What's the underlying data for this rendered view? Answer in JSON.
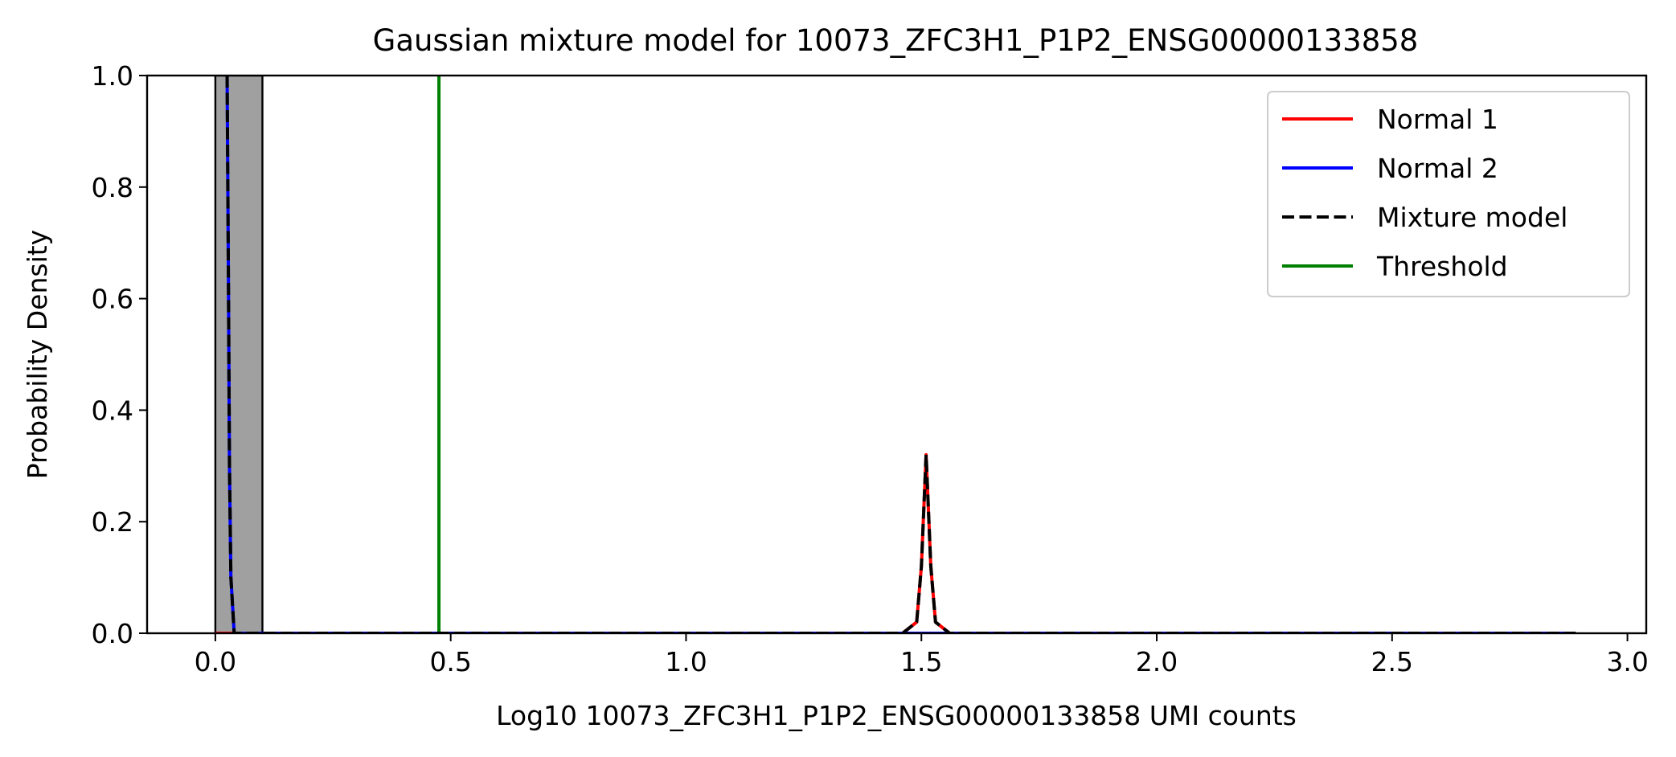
{
  "chart_data": {
    "type": "line",
    "title": "Gaussian mixture model for 10073_ZFC3H1_P1P2_ENSG00000133858",
    "xlabel": "Log10 10073_ZFC3H1_P1P2_ENSG00000133858 UMI counts",
    "ylabel": "Probability Density",
    "xlim": [
      -0.145,
      3.04
    ],
    "ylim": [
      0,
      1.0
    ],
    "x_ticks": [
      "0.0",
      "0.5",
      "1.0",
      "1.5",
      "2.0",
      "2.5",
      "3.0"
    ],
    "y_ticks": [
      "0.0",
      "0.2",
      "0.4",
      "0.6",
      "0.8",
      "1.0"
    ],
    "grid": false,
    "legend_position": "top-right",
    "histogram": {
      "bin_edges": [
        0.0,
        0.1
      ],
      "heights": [
        1.0
      ],
      "color": "#a0a0a0"
    },
    "series": [
      {
        "name": "Normal 1",
        "color": "#ff0000",
        "style": "solid",
        "points": [
          [
            0.0,
            0.0
          ],
          [
            1.46,
            0.0
          ],
          [
            1.49,
            0.02
          ],
          [
            1.5,
            0.12
          ],
          [
            1.505,
            0.22
          ],
          [
            1.51,
            0.32
          ],
          [
            1.515,
            0.22
          ],
          [
            1.52,
            0.12
          ],
          [
            1.53,
            0.02
          ],
          [
            1.56,
            0.0
          ],
          [
            2.89,
            0.0
          ]
        ]
      },
      {
        "name": "Normal 2",
        "color": "#0000ff",
        "style": "solid",
        "points": [
          [
            0.025,
            1.0
          ],
          [
            0.028,
            0.6
          ],
          [
            0.03,
            0.3
          ],
          [
            0.033,
            0.1
          ],
          [
            0.04,
            0.0
          ],
          [
            2.89,
            0.0
          ]
        ]
      },
      {
        "name": "Mixture model",
        "color": "#000000",
        "style": "dashed",
        "points": [
          [
            0.025,
            1.0
          ],
          [
            0.028,
            0.6
          ],
          [
            0.03,
            0.3
          ],
          [
            0.033,
            0.1
          ],
          [
            0.04,
            0.0
          ],
          [
            1.46,
            0.0
          ],
          [
            1.49,
            0.02
          ],
          [
            1.5,
            0.12
          ],
          [
            1.505,
            0.22
          ],
          [
            1.51,
            0.32
          ],
          [
            1.515,
            0.22
          ],
          [
            1.52,
            0.12
          ],
          [
            1.53,
            0.02
          ],
          [
            1.56,
            0.0
          ],
          [
            2.89,
            0.0
          ]
        ]
      }
    ],
    "threshold": {
      "name": "Threshold",
      "x": 0.475,
      "color": "#008000"
    }
  }
}
